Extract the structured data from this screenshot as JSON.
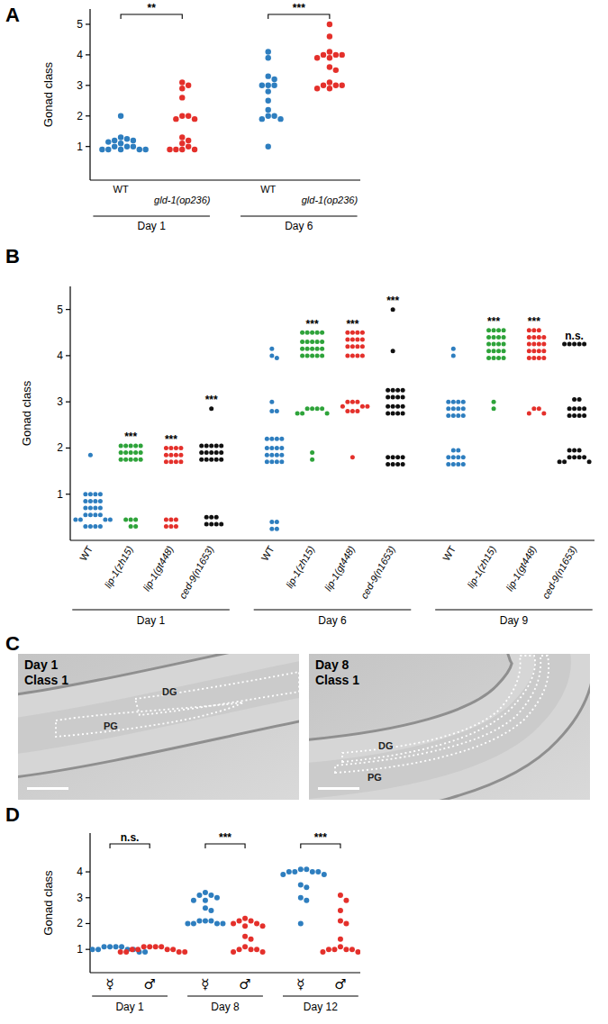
{
  "chart_data": [
    {
      "type": "scatter",
      "title": "A",
      "ylabel": "Gonad class",
      "ylim": [
        -0.1,
        5.5
      ],
      "yticks": [
        1,
        2,
        3,
        4,
        5
      ],
      "groups": [
        {
          "label": "Day 1",
          "categories": [
            "WT",
            "gld-1(op236)"
          ],
          "colors": [
            "#2e7ebf",
            "#e4302b"
          ],
          "significance": "**",
          "values": [
            [
              2.0,
              1.3,
              1.25,
              1.2,
              1.2,
              1.15,
              1.1,
              1.0,
              1.0,
              1.0,
              0.9,
              0.9,
              0.9,
              0.9,
              0.9
            ],
            [
              3.1,
              3.0,
              2.9,
              2.6,
              2.0,
              2.0,
              1.9,
              1.9,
              1.3,
              1.2,
              1.1,
              1.0,
              0.9,
              0.9,
              0.9,
              0.9
            ]
          ]
        },
        {
          "label": "Day 6",
          "categories": [
            "WT",
            "gld-1(op236)"
          ],
          "colors": [
            "#2e7ebf",
            "#e4302b"
          ],
          "significance": "***",
          "values": [
            [
              4.1,
              3.9,
              3.3,
              3.2,
              3.0,
              3.0,
              3.0,
              2.8,
              2.5,
              2.2,
              2.0,
              2.0,
              1.9,
              1.9,
              1.0
            ],
            [
              5.0,
              4.6,
              4.1,
              4.0,
              4.0,
              4.0,
              3.9,
              3.9,
              3.6,
              3.5,
              3.1,
              3.0,
              3.0,
              3.0,
              2.9,
              2.9
            ]
          ]
        }
      ]
    },
    {
      "type": "scatter",
      "title": "B",
      "ylabel": "Gonad class",
      "ylim": [
        0,
        5.5
      ],
      "yticks": [
        1,
        2,
        3,
        4,
        5
      ],
      "groups": [
        {
          "label": "Day 1",
          "categories": [
            "WT",
            "lip-1(zh15)",
            "lip-1(gt448)",
            "ced-9(n1653)"
          ],
          "colors": [
            "#2e7ebf",
            "#2ea33a",
            "#e4302b",
            "#111111"
          ],
          "significance": [
            null,
            "***",
            "***",
            "***"
          ],
          "values": [
            [
              1.85,
              1.0,
              1.0,
              1.0,
              1.0,
              0.85,
              0.85,
              0.85,
              0.85,
              0.7,
              0.7,
              0.7,
              0.7,
              0.55,
              0.55,
              0.55,
              0.55,
              0.45,
              0.45,
              0.45,
              0.45,
              0.3,
              0.3,
              0.3,
              0.3
            ],
            [
              2.05,
              2.05,
              2.05,
              2.05,
              2.05,
              1.9,
              1.9,
              1.9,
              1.9,
              1.9,
              1.75,
              1.75,
              1.75,
              1.75,
              1.75,
              0.45,
              0.45,
              0.45,
              0.3,
              0.3
            ],
            [
              2.0,
              2.0,
              2.0,
              2.0,
              1.85,
              1.85,
              1.85,
              1.85,
              1.7,
              1.7,
              1.7,
              1.7,
              0.45,
              0.45,
              0.45,
              0.3,
              0.3,
              0.3
            ],
            [
              2.85,
              2.05,
              2.05,
              2.05,
              2.05,
              2.05,
              1.9,
              1.9,
              1.9,
              1.9,
              1.9,
              1.75,
              1.75,
              1.75,
              1.75,
              1.75,
              0.5,
              0.5,
              0.5,
              0.35,
              0.35,
              0.35,
              0.35
            ]
          ]
        },
        {
          "label": "Day 6",
          "categories": [
            "WT",
            "lip-1(zh15)",
            "lip-1(gt448)",
            "ced-9(n1653)"
          ],
          "colors": [
            "#2e7ebf",
            "#2ea33a",
            "#e4302b",
            "#111111"
          ],
          "significance": [
            null,
            "***",
            "***",
            "***"
          ],
          "values": [
            [
              4.15,
              4.0,
              3.95,
              3.0,
              2.8,
              2.8,
              2.2,
              2.2,
              2.2,
              2.2,
              2.0,
              2.0,
              2.0,
              2.0,
              1.85,
              1.85,
              1.85,
              1.85,
              1.7,
              1.7,
              1.7,
              1.7,
              0.4,
              0.4,
              0.25,
              0.25
            ],
            [
              4.5,
              4.5,
              4.5,
              4.5,
              4.5,
              4.3,
              4.3,
              4.3,
              4.3,
              4.3,
              4.15,
              4.15,
              4.15,
              4.15,
              4.15,
              4.0,
              4.0,
              4.0,
              4.0,
              4.0,
              2.85,
              2.85,
              2.85,
              2.85,
              2.75,
              2.75,
              2.75,
              1.9,
              1.75
            ],
            [
              4.5,
              4.5,
              4.5,
              4.5,
              4.35,
              4.35,
              4.35,
              4.35,
              4.2,
              4.2,
              4.2,
              4.2,
              4.0,
              4.0,
              4.0,
              4.0,
              3.0,
              3.0,
              3.0,
              2.9,
              2.9,
              2.9,
              2.8,
              2.8,
              2.8,
              1.8
            ],
            [
              5.0,
              4.1,
              3.25,
              3.25,
              3.25,
              3.25,
              3.1,
              3.1,
              3.1,
              3.1,
              2.9,
              2.9,
              2.9,
              2.9,
              2.75,
              2.75,
              2.75,
              2.75,
              1.8,
              1.8,
              1.8,
              1.8,
              1.65,
              1.65,
              1.65,
              1.65
            ]
          ]
        },
        {
          "label": "Day 9",
          "categories": [
            "WT",
            "lip-1(zh15)",
            "lip-1(gt448)",
            "ced-9(n1653)"
          ],
          "colors": [
            "#2e7ebf",
            "#2ea33a",
            "#e4302b",
            "#111111"
          ],
          "significance": [
            null,
            "***",
            "***",
            "n.s."
          ],
          "values": [
            [
              4.15,
              4.0,
              3.0,
              3.0,
              3.0,
              3.0,
              2.85,
              2.85,
              2.85,
              2.85,
              2.7,
              2.7,
              2.7,
              2.7,
              1.95,
              1.95,
              1.8,
              1.8,
              1.8,
              1.8,
              1.65,
              1.65,
              1.65,
              1.65
            ],
            [
              4.55,
              4.55,
              4.55,
              4.55,
              4.4,
              4.4,
              4.4,
              4.4,
              4.25,
              4.25,
              4.25,
              4.25,
              4.1,
              4.1,
              4.1,
              4.1,
              3.95,
              3.95,
              3.95,
              3.95,
              3.0,
              2.85
            ],
            [
              4.55,
              4.55,
              4.55,
              4.4,
              4.4,
              4.4,
              4.4,
              4.25,
              4.25,
              4.25,
              4.25,
              4.1,
              4.1,
              4.1,
              4.1,
              3.95,
              3.95,
              3.95,
              3.95,
              2.85,
              2.85,
              2.75,
              2.75
            ],
            [
              4.25,
              4.25,
              4.25,
              4.25,
              4.25,
              3.05,
              3.05,
              2.85,
              2.85,
              2.85,
              2.85,
              2.7,
              2.7,
              2.7,
              2.7,
              1.95,
              1.95,
              1.95,
              1.8,
              1.8,
              1.8,
              1.8,
              1.7,
              1.7,
              1.7
            ]
          ]
        }
      ]
    },
    {
      "type": "scatter",
      "title": "D",
      "ylabel": "Gonad class",
      "ylim": [
        0.1,
        5.5
      ],
      "yticks": [
        1,
        2,
        3,
        4
      ],
      "groups": [
        {
          "label": "Day 1",
          "categories": [
            "☿",
            "♂"
          ],
          "colors": [
            "#2e7ebf",
            "#e4302b"
          ],
          "significance": "n.s.",
          "values": [
            [
              1.1,
              1.1,
              1.1,
              1.1,
              1.0,
              1.0,
              1.0,
              1.0,
              0.9,
              0.9,
              0.9,
              0.9
            ],
            [
              1.1,
              1.1,
              1.1,
              1.1,
              1.0,
              1.0,
              1.0,
              1.0,
              0.9,
              0.9,
              0.9,
              0.9
            ]
          ]
        },
        {
          "label": "Day 8",
          "categories": [
            "☿",
            "♂"
          ],
          "colors": [
            "#2e7ebf",
            "#e4302b"
          ],
          "significance": "***",
          "values": [
            [
              3.2,
              3.1,
              3.1,
              3.0,
              2.9,
              2.9,
              2.6,
              2.5,
              2.1,
              2.1,
              2.1,
              2.0,
              2.0,
              2.0,
              2.0
            ],
            [
              2.2,
              2.1,
              2.1,
              2.0,
              2.0,
              1.9,
              1.9,
              1.5,
              1.4,
              1.1,
              1.0,
              1.0,
              1.0,
              0.9,
              0.9
            ]
          ]
        },
        {
          "label": "Day 12",
          "categories": [
            "☿",
            "♂"
          ],
          "colors": [
            "#2e7ebf",
            "#e4302b"
          ],
          "significance": "***",
          "values": [
            [
              4.1,
              4.1,
              4.0,
              4.0,
              4.0,
              4.0,
              3.9,
              3.9,
              3.5,
              3.4,
              3.0,
              2.9,
              2.0
            ],
            [
              3.1,
              2.9,
              2.5,
              2.1,
              2.0,
              1.4,
              1.1,
              1.0,
              1.0,
              1.0,
              1.0,
              0.9,
              0.9,
              0.9
            ]
          ]
        }
      ]
    }
  ],
  "micrographs": {
    "title": "C",
    "images": [
      {
        "lines": [
          "Day 1",
          "Class 1"
        ],
        "labels": [
          "DG",
          "PG"
        ]
      },
      {
        "lines": [
          "Day 8",
          "Class 1"
        ],
        "labels": [
          "DG",
          "PG"
        ]
      }
    ]
  }
}
